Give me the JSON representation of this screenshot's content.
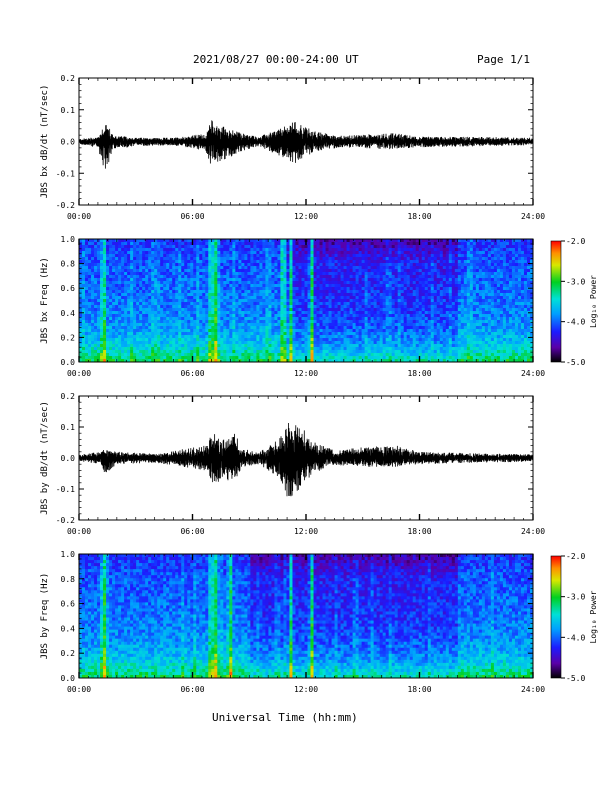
{
  "header": {
    "title": "2021/08/27  00:00-24:00 UT",
    "page": "Page 1/1"
  },
  "xlabel": "Universal Time (hh:mm)",
  "colorbar": {
    "ticks": [
      "-2.0",
      "-3.0",
      "-4.0",
      "-5.0"
    ],
    "label": "Log₁₀ Power",
    "range": [
      -5.0,
      -2.0
    ]
  },
  "chart_data": [
    {
      "type": "line",
      "ylabel": "JBS bx dB/dt (nT/sec)",
      "xlim": [
        0,
        24
      ],
      "ylim": [
        -0.2,
        0.2
      ],
      "xticks": [
        "00:00",
        "06:00",
        "12:00",
        "18:00",
        "24:00"
      ],
      "yticks": [
        "0.2",
        "0.1",
        "0.0",
        "-0.1",
        "-0.2"
      ],
      "grid": false,
      "envelope": [
        {
          "t": 0.0,
          "max": 0.008,
          "min": -0.008
        },
        {
          "t": 1.0,
          "max": 0.015,
          "min": -0.02
        },
        {
          "t": 1.4,
          "max": 0.065,
          "min": -0.105
        },
        {
          "t": 1.8,
          "max": 0.02,
          "min": -0.025
        },
        {
          "t": 3.0,
          "max": 0.012,
          "min": -0.015
        },
        {
          "t": 5.0,
          "max": 0.012,
          "min": -0.012
        },
        {
          "t": 6.7,
          "max": 0.025,
          "min": -0.03
        },
        {
          "t": 7.0,
          "max": 0.07,
          "min": -0.08
        },
        {
          "t": 7.2,
          "max": 0.055,
          "min": -0.07
        },
        {
          "t": 7.9,
          "max": 0.045,
          "min": -0.055
        },
        {
          "t": 8.4,
          "max": 0.03,
          "min": -0.035
        },
        {
          "t": 9.5,
          "max": 0.015,
          "min": -0.015
        },
        {
          "t": 10.8,
          "max": 0.045,
          "min": -0.05
        },
        {
          "t": 11.4,
          "max": 0.065,
          "min": -0.07
        },
        {
          "t": 11.9,
          "max": 0.05,
          "min": -0.05
        },
        {
          "t": 12.6,
          "max": 0.03,
          "min": -0.03
        },
        {
          "t": 14.0,
          "max": 0.018,
          "min": -0.018
        },
        {
          "t": 16.5,
          "max": 0.028,
          "min": -0.025
        },
        {
          "t": 18.0,
          "max": 0.015,
          "min": -0.018
        },
        {
          "t": 21.0,
          "max": 0.015,
          "min": -0.015
        },
        {
          "t": 24.0,
          "max": 0.012,
          "min": -0.012
        }
      ]
    },
    {
      "type": "heatmap",
      "ylabel": "JBS bx Freq (Hz)",
      "xlim": [
        0,
        24
      ],
      "ylim": [
        0.0,
        1.0
      ],
      "xticks": [
        "00:00",
        "06:00",
        "12:00",
        "18:00",
        "24:00"
      ],
      "yticks": [
        "1.0",
        "0.8",
        "0.6",
        "0.4",
        "0.2",
        "0.0"
      ],
      "zlim": [
        -5.0,
        -2.0
      ],
      "bright_bands_hours": [
        1.3,
        7.0,
        7.25,
        10.8,
        11.2,
        12.3
      ],
      "dark_region_hours": [
        11.0,
        20.0
      ]
    },
    {
      "type": "line",
      "ylabel": "JBS by dB/dt (nT/sec)",
      "xlim": [
        0,
        24
      ],
      "ylim": [
        -0.2,
        0.2
      ],
      "xticks": [
        "00:00",
        "06:00",
        "12:00",
        "18:00",
        "24:00"
      ],
      "yticks": [
        "0.2",
        "0.1",
        "0.0",
        "-0.1",
        "-0.2"
      ],
      "grid": false,
      "envelope": [
        {
          "t": 0.0,
          "max": 0.01,
          "min": -0.01
        },
        {
          "t": 1.0,
          "max": 0.02,
          "min": -0.02
        },
        {
          "t": 1.4,
          "max": 0.035,
          "min": -0.05
        },
        {
          "t": 2.0,
          "max": 0.02,
          "min": -0.02
        },
        {
          "t": 4.0,
          "max": 0.015,
          "min": -0.015
        },
        {
          "t": 6.7,
          "max": 0.04,
          "min": -0.04
        },
        {
          "t": 7.1,
          "max": 0.085,
          "min": -0.09
        },
        {
          "t": 7.6,
          "max": 0.06,
          "min": -0.07
        },
        {
          "t": 8.2,
          "max": 0.09,
          "min": -0.08
        },
        {
          "t": 8.6,
          "max": 0.03,
          "min": -0.03
        },
        {
          "t": 9.5,
          "max": 0.02,
          "min": -0.02
        },
        {
          "t": 10.5,
          "max": 0.06,
          "min": -0.06
        },
        {
          "t": 11.1,
          "max": 0.12,
          "min": -0.14
        },
        {
          "t": 11.8,
          "max": 0.1,
          "min": -0.09
        },
        {
          "t": 12.5,
          "max": 0.05,
          "min": -0.05
        },
        {
          "t": 13.5,
          "max": 0.025,
          "min": -0.025
        },
        {
          "t": 16.5,
          "max": 0.045,
          "min": -0.03
        },
        {
          "t": 18.0,
          "max": 0.02,
          "min": -0.02
        },
        {
          "t": 21.0,
          "max": 0.015,
          "min": -0.015
        },
        {
          "t": 24.0,
          "max": 0.012,
          "min": -0.012
        }
      ]
    },
    {
      "type": "heatmap",
      "ylabel": "JBS by Freq (Hz)",
      "xlim": [
        0,
        24
      ],
      "ylim": [
        0.0,
        1.0
      ],
      "xticks": [
        "00:00",
        "06:00",
        "12:00",
        "18:00",
        "24:00"
      ],
      "yticks": [
        "1.0",
        "0.8",
        "0.6",
        "0.4",
        "0.2",
        "0.0"
      ],
      "zlim": [
        -5.0,
        -2.0
      ],
      "bright_bands_hours": [
        1.3,
        7.0,
        7.25,
        8.0,
        11.2,
        12.3
      ],
      "dark_region_hours": [
        9.0,
        20.0
      ]
    }
  ]
}
